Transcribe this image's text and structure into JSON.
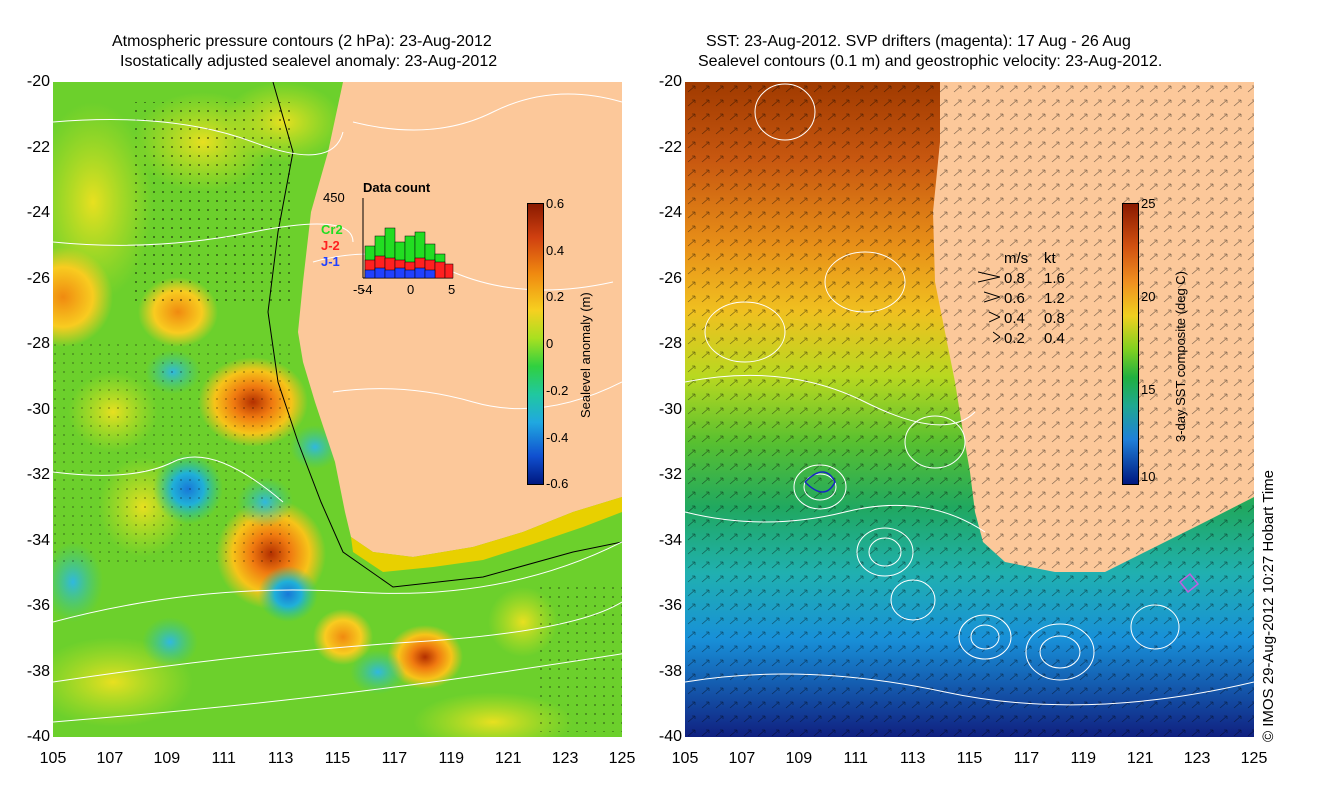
{
  "left": {
    "title_line1": "Atmospheric pressure contours (2 hPa): 23-Aug-2012",
    "title_line2": "Isostatically adjusted sealevel anomaly: 23-Aug-2012",
    "y_ticks": [
      "-20",
      "-22",
      "-24",
      "-26",
      "-28",
      "-30",
      "-32",
      "-34",
      "-36",
      "-38",
      "-40"
    ],
    "x_ticks": [
      "105",
      "107",
      "109",
      "111",
      "113",
      "115",
      "117",
      "119",
      "121",
      "123",
      "125"
    ],
    "colorbar": {
      "label": "Sealevel anomaly (m)",
      "ticks": [
        "0.6",
        "0.4",
        "0.2",
        "0",
        "-0.2",
        "-0.4",
        "-0.6"
      ]
    },
    "histogram": {
      "title": "Data count",
      "ymax_label": "450",
      "x_ticks": [
        "-5",
        "-4",
        "0",
        "5"
      ],
      "legend": [
        {
          "label": "Cr2",
          "color": "#22dd22"
        },
        {
          "label": "J-2",
          "color": "#ff2020"
        },
        {
          "label": "J-1",
          "color": "#2040ff"
        }
      ]
    }
  },
  "right": {
    "title_line1": "SST: 23-Aug-2012. SVP drifters (magenta): 17 Aug - 26 Aug",
    "title_line2": "Sealevel contours (0.1 m) and geostrophic velocity: 23-Aug-2012.",
    "y_ticks": [
      "-20",
      "-22",
      "-24",
      "-26",
      "-28",
      "-30",
      "-32",
      "-34",
      "-36",
      "-38",
      "-40"
    ],
    "x_ticks": [
      "105",
      "107",
      "109",
      "111",
      "113",
      "115",
      "117",
      "119",
      "121",
      "123",
      "125"
    ],
    "colorbar": {
      "label": "3-day SST composite (deg C)",
      "ticks": [
        "25",
        "20",
        "15",
        "10"
      ]
    },
    "velocity_legend": {
      "header_ms": "m/s",
      "header_kt": "kt",
      "rows": [
        {
          "ms": "0.8",
          "kt": "1.6"
        },
        {
          "ms": "0.6",
          "kt": "1.2"
        },
        {
          "ms": "0.4",
          "kt": "0.8"
        },
        {
          "ms": "0.2",
          "kt": "0.4"
        }
      ]
    }
  },
  "credit": "© IMOS 29-Aug-2012 10:27 Hobart Time",
  "colors": {
    "land": "#fcc89a",
    "anomaly_high": "#b33000",
    "anomaly_low": "#00209a",
    "sst_warm": "#a03a00",
    "sst_cold": "#102080"
  }
}
